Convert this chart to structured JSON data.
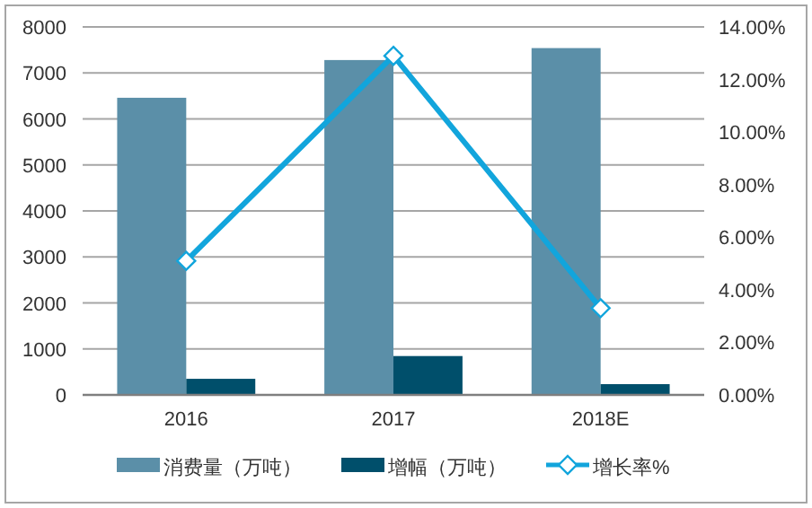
{
  "chart_data": {
    "type": "bar",
    "categories": [
      "2016",
      "2017",
      "2018E"
    ],
    "series": [
      {
        "name": "消费量（万吨）",
        "color": "#5b8fa8",
        "values": [
          6460,
          7280,
          7540
        ]
      },
      {
        "name": "增幅（万吨）",
        "color": "#004f6b",
        "values": [
          350,
          845,
          234
        ]
      },
      {
        "name": "增长率%",
        "type": "line",
        "axis": "y2",
        "color": "#12a5dc",
        "marker": "diamond",
        "values": [
          5.1,
          12.9,
          3.3
        ]
      }
    ],
    "ylim": [
      0,
      8000
    ],
    "yticks": [
      0,
      1000,
      2000,
      3000,
      4000,
      5000,
      6000,
      7000,
      8000
    ],
    "y2lim": [
      0,
      14
    ],
    "y2ticks": [
      {
        "value": 0,
        "label": "0.00%"
      },
      {
        "value": 2,
        "label": "2.00%"
      },
      {
        "value": 4,
        "label": "4.00%"
      },
      {
        "value": 6,
        "label": "6.00%"
      },
      {
        "value": 8,
        "label": "8.00%"
      },
      {
        "value": 10,
        "label": "10.00%"
      },
      {
        "value": 12,
        "label": "12.00%"
      },
      {
        "value": 14,
        "label": "14.00%"
      }
    ],
    "grid": "y",
    "legend": "bottom"
  }
}
